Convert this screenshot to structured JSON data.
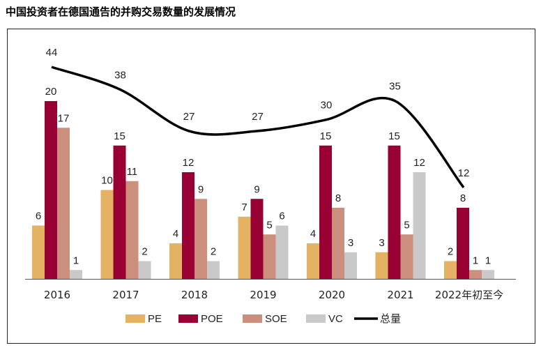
{
  "title": "中国投资者在德国通告的并购交易数量的发展情况",
  "chart_data": {
    "type": "bar",
    "title": "中国投资者在德国通告的并购交易数量的发展情况",
    "categories": [
      "2016",
      "2017",
      "2018",
      "2019",
      "2020",
      "2021",
      "2022年初至今"
    ],
    "series": [
      {
        "name": "PE",
        "color": "#e5b264",
        "values": [
          6,
          10,
          4,
          7,
          4,
          3,
          2
        ]
      },
      {
        "name": "POE",
        "color": "#990033",
        "values": [
          20,
          15,
          12,
          9,
          15,
          15,
          8
        ]
      },
      {
        "name": "SOE",
        "color": "#cc8f7e",
        "values": [
          17,
          11,
          9,
          5,
          8,
          5,
          1
        ]
      },
      {
        "name": "VC",
        "color": "#c9c9c9",
        "values": [
          1,
          2,
          2,
          6,
          3,
          12,
          1
        ]
      }
    ],
    "line_series": {
      "name": "总量",
      "color": "#000000",
      "type": "line",
      "values": [
        44,
        38,
        27,
        27,
        30,
        35,
        12
      ]
    },
    "legend_position": "bottom",
    "grid": false,
    "xlabel": "",
    "ylabel": ""
  }
}
